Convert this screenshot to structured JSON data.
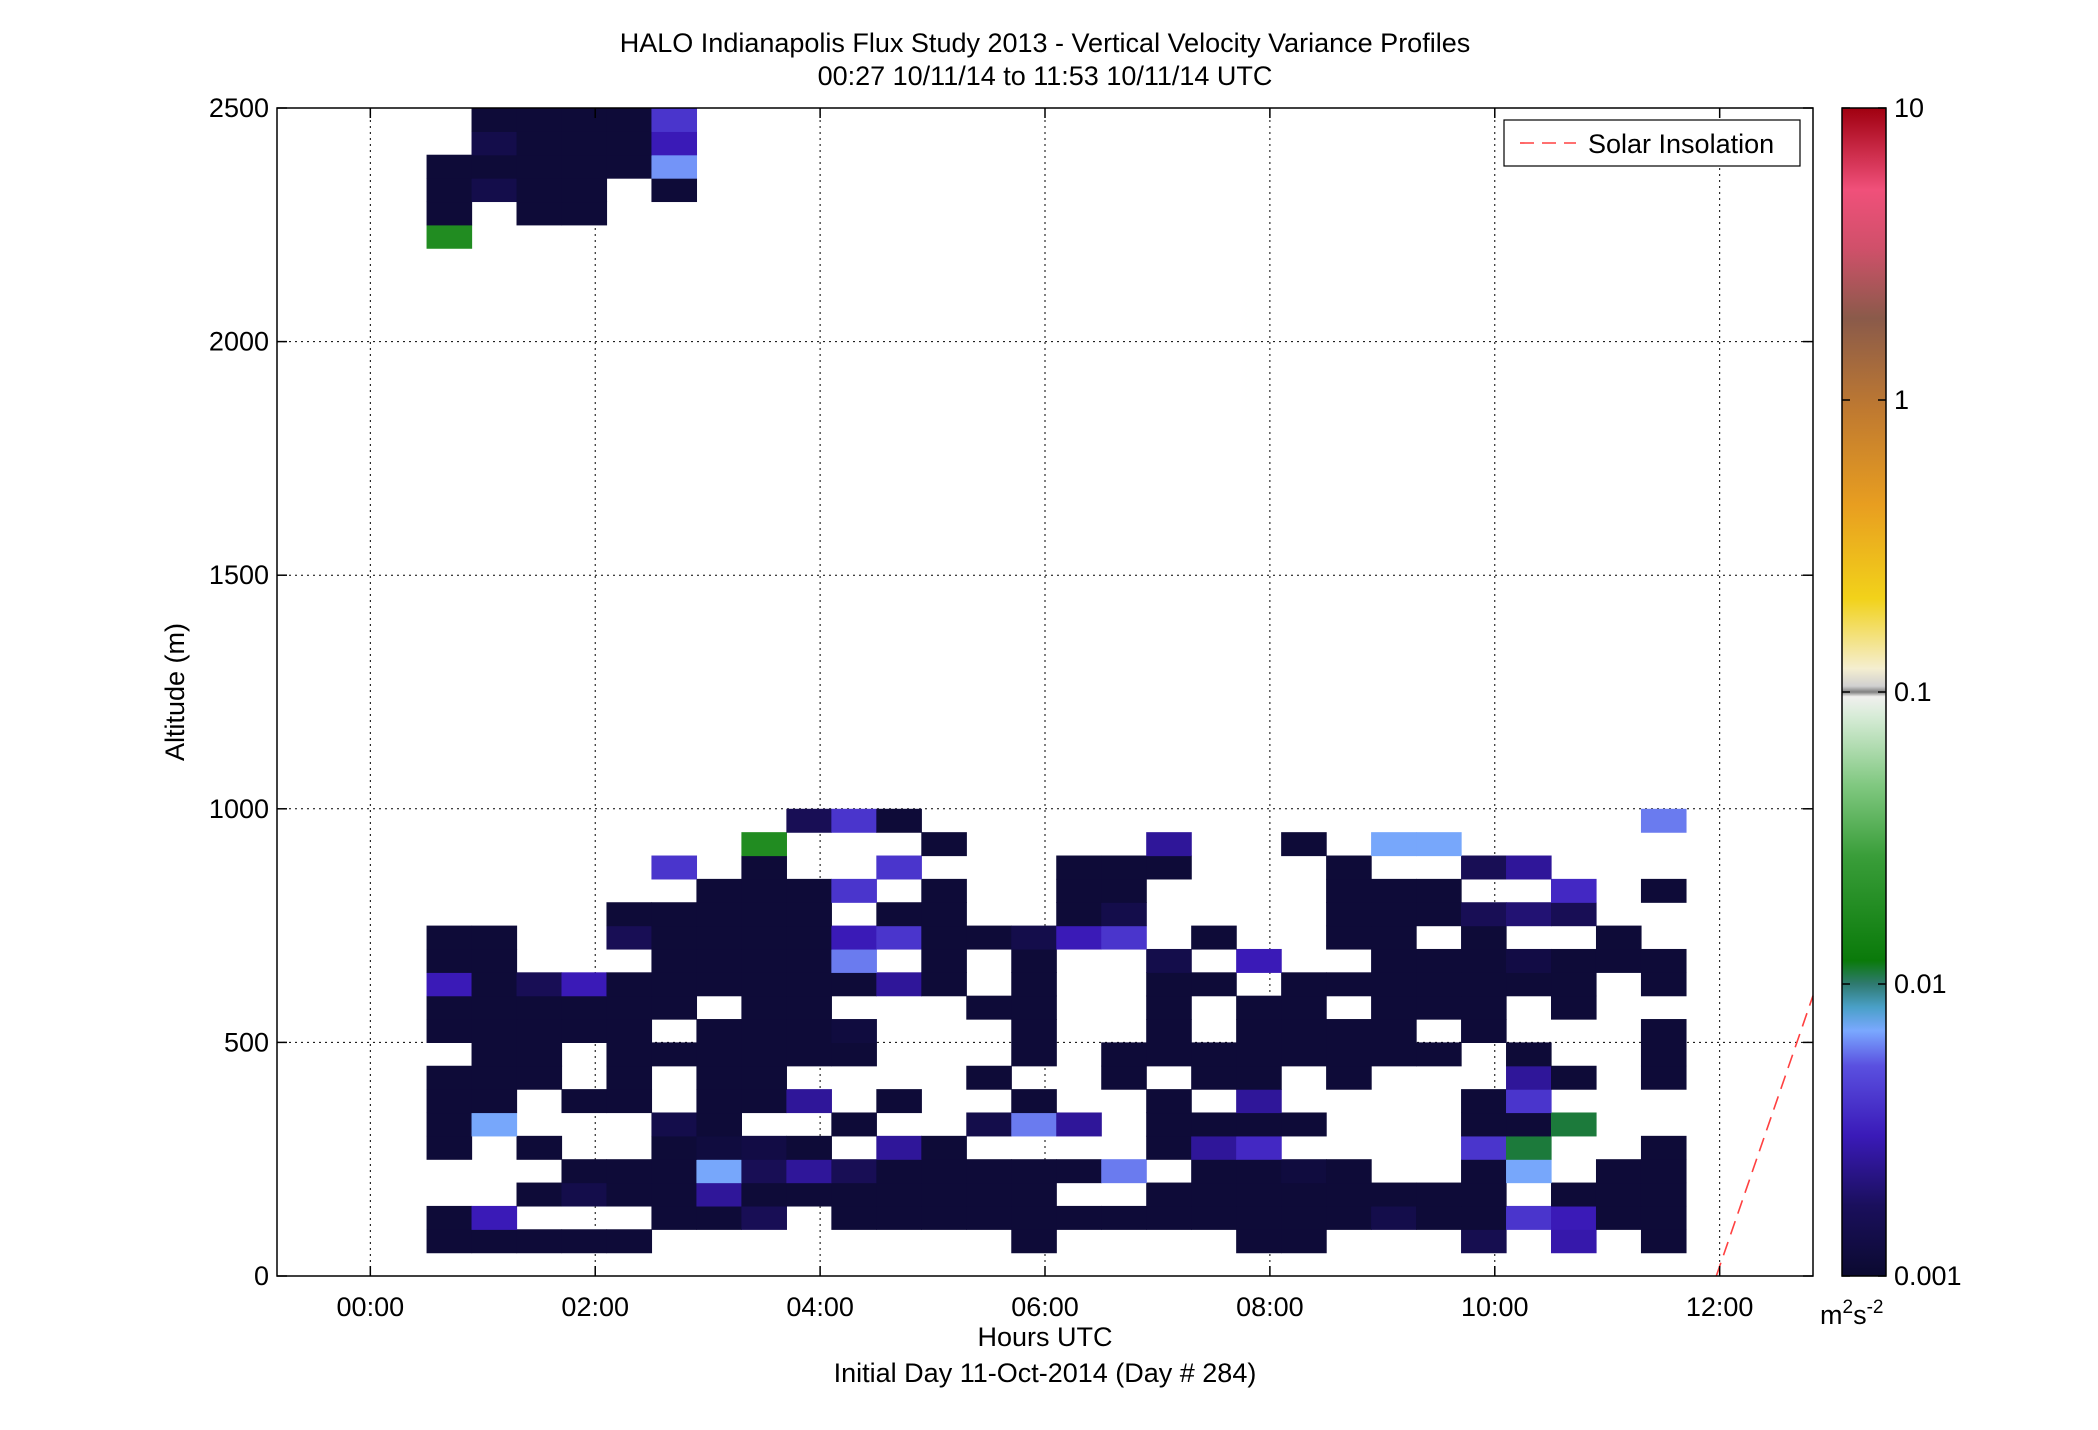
{
  "chart_data": {
    "type": "heatmap",
    "title": "HALO Indianapolis Flux Study 2013 - Vertical Velocity Variance Profiles",
    "subtitle": "00:27 10/11/14 to 11:53 10/11/14  UTC",
    "xlabel": "Hours UTC",
    "footer": "Initial Day 11-Oct-2014 (Day # 284)",
    "ylabel": "Altitude (m)",
    "x_units": "hours",
    "xlim": [
      -0.83,
      12.83
    ],
    "ylim": [
      0,
      2500
    ],
    "x_tick_values": [
      0,
      2,
      4,
      6,
      8,
      10,
      12
    ],
    "x_tick_labels": [
      "00:00",
      "02:00",
      "04:00",
      "06:00",
      "08:00",
      "10:00",
      "12:00"
    ],
    "y_tick_values": [
      0,
      500,
      1000,
      1500,
      2000,
      2500
    ],
    "y_tick_labels": [
      "0",
      "500",
      "1000",
      "1500",
      "2000",
      "2500"
    ],
    "grid": true,
    "legend": {
      "position": "top-right",
      "entries": [
        {
          "label": "Solar Insolation",
          "style": "dashed",
          "color": "#ff0000"
        }
      ]
    },
    "colorbar": {
      "scale": "log",
      "range": [
        0.001,
        10
      ],
      "tick_values": [
        0.001,
        0.01,
        0.1,
        1,
        10
      ],
      "tick_labels": [
        "0.001",
        "0.01",
        "0.1",
        "1",
        "10"
      ],
      "unit_label": "m",
      "unit_sup1": "2",
      "unit_mid": "s",
      "unit_sup2": "-2"
    },
    "solar_insolation_line": [
      [
        11.97,
        0
      ],
      [
        12.83,
        600
      ]
    ],
    "cell_width_hours": 0.4,
    "cell_height_m": 50,
    "x_centers": [
      0.7,
      1.1,
      1.5,
      1.9,
      2.3,
      2.7,
      3.1,
      3.5,
      3.9,
      4.3,
      4.7,
      5.1,
      5.5,
      5.9,
      6.3,
      6.7,
      7.1,
      7.5,
      7.9,
      8.3,
      8.7,
      9.1,
      9.5,
      9.9,
      10.3,
      10.7,
      11.1,
      11.5
    ],
    "y_centers": [
      75,
      125,
      175,
      225,
      275,
      325,
      375,
      425,
      475,
      525,
      575,
      625,
      675,
      725,
      775,
      825,
      875,
      925,
      975,
      2225,
      2275,
      2325,
      2375,
      2425,
      2475
    ],
    "values": [
      [
        0.0011,
        0.0011,
        0.0011,
        0.0011,
        0.0011,
        null,
        null,
        null,
        null,
        null,
        null,
        null,
        null,
        0.0011,
        null,
        null,
        null,
        null,
        0.0011,
        0.0011,
        null,
        null,
        null,
        0.0015,
        null,
        0.0028,
        null,
        0.0011
      ],
      [
        0.0011,
        0.003,
        null,
        null,
        null,
        0.0011,
        0.0011,
        0.0016,
        null,
        0.0011,
        0.0011,
        0.0011,
        0.0011,
        0.0011,
        0.0011,
        0.0011,
        0.0011,
        0.0011,
        0.0011,
        0.0011,
        0.0011,
        0.0014,
        0.0011,
        0.0011,
        0.004,
        0.003,
        0.0011,
        0.0011
      ],
      [
        null,
        null,
        0.0011,
        0.0014,
        0.0011,
        0.0011,
        0.0025,
        0.0011,
        0.0011,
        0.0011,
        0.0011,
        0.0011,
        0.0011,
        0.0011,
        null,
        null,
        0.0011,
        0.0011,
        0.0011,
        0.0011,
        0.0011,
        0.0011,
        0.0011,
        0.0011,
        null,
        0.0011,
        0.0011,
        0.0011
      ],
      [
        null,
        null,
        null,
        0.0011,
        0.0011,
        0.0011,
        0.007,
        0.0016,
        0.0025,
        0.0016,
        0.0011,
        0.0011,
        0.0011,
        0.0011,
        0.0011,
        0.006,
        null,
        0.0011,
        0.0011,
        0.0012,
        0.0011,
        null,
        null,
        0.0011,
        0.007,
        null,
        0.0011,
        0.0011
      ],
      [
        0.0011,
        null,
        0.0011,
        null,
        null,
        0.0011,
        0.0012,
        0.0013,
        0.0011,
        null,
        0.0025,
        0.0011,
        null,
        null,
        null,
        null,
        0.0011,
        0.0025,
        0.0035,
        null,
        null,
        null,
        null,
        0.004,
        0.011,
        null,
        null,
        0.0011
      ],
      [
        0.0011,
        0.007,
        null,
        null,
        null,
        0.0014,
        0.0011,
        null,
        null,
        0.0011,
        null,
        null,
        0.0014,
        0.006,
        0.0025,
        null,
        0.0011,
        0.0011,
        0.0011,
        0.0011,
        null,
        null,
        null,
        0.0011,
        0.0011,
        0.011,
        null,
        null
      ],
      [
        0.0011,
        0.0011,
        null,
        0.0011,
        0.0011,
        null,
        0.0011,
        0.0011,
        0.0025,
        null,
        0.0011,
        null,
        null,
        0.0011,
        null,
        null,
        0.0011,
        null,
        0.0025,
        null,
        null,
        null,
        null,
        0.0011,
        0.004,
        null,
        null,
        null
      ],
      [
        0.0011,
        0.0011,
        0.0011,
        null,
        0.0011,
        null,
        0.0011,
        0.0011,
        null,
        null,
        null,
        null,
        0.0011,
        null,
        null,
        0.0011,
        null,
        0.0011,
        0.0011,
        null,
        0.0011,
        null,
        null,
        null,
        0.0025,
        0.0011,
        null,
        0.0011
      ],
      [
        null,
        0.0011,
        0.0011,
        null,
        0.0011,
        0.0011,
        0.0011,
        0.0011,
        0.0011,
        0.0011,
        null,
        null,
        null,
        0.0011,
        null,
        0.0011,
        0.0011,
        0.0011,
        0.0011,
        0.0011,
        0.0011,
        0.0011,
        0.0011,
        null,
        0.0011,
        null,
        null,
        0.0011
      ],
      [
        0.0011,
        0.0011,
        0.0011,
        0.0011,
        0.0011,
        null,
        0.0011,
        0.0011,
        0.0011,
        0.0012,
        null,
        null,
        null,
        0.0011,
        null,
        null,
        0.0011,
        null,
        0.0011,
        0.0011,
        0.0011,
        0.0011,
        null,
        0.0011,
        null,
        null,
        null,
        0.0011
      ],
      [
        0.0011,
        0.0011,
        0.0011,
        0.0011,
        0.0011,
        0.0011,
        null,
        0.0011,
        0.0011,
        null,
        null,
        null,
        0.0011,
        0.0011,
        null,
        null,
        0.0011,
        null,
        0.0011,
        0.0011,
        null,
        0.0011,
        0.0011,
        0.0011,
        null,
        0.0011,
        null,
        null
      ],
      [
        0.003,
        0.0011,
        0.0016,
        0.003,
        0.0011,
        0.0011,
        0.0011,
        0.0011,
        0.0011,
        0.0011,
        0.0025,
        0.0011,
        null,
        0.0011,
        null,
        null,
        0.0011,
        0.0011,
        null,
        0.0011,
        0.0011,
        0.0011,
        0.0011,
        0.0011,
        0.0011,
        0.0011,
        null,
        0.0011
      ],
      [
        0.0011,
        0.0011,
        null,
        null,
        null,
        0.0011,
        0.0011,
        0.0011,
        0.0011,
        0.006,
        null,
        0.0011,
        null,
        0.0011,
        null,
        null,
        0.0014,
        null,
        0.003,
        null,
        null,
        0.0011,
        0.0011,
        0.0011,
        0.0013,
        0.0011,
        0.0011,
        0.0011
      ],
      [
        0.0011,
        0.0011,
        null,
        null,
        0.0016,
        0.0011,
        0.0011,
        0.0011,
        0.0011,
        0.003,
        0.004,
        0.0011,
        0.0011,
        0.0014,
        0.003,
        0.004,
        null,
        0.0011,
        null,
        null,
        0.0011,
        0.0011,
        null,
        0.0011,
        null,
        null,
        0.0011,
        null
      ],
      [
        null,
        null,
        null,
        null,
        0.0011,
        0.0011,
        0.0011,
        0.0011,
        0.0011,
        null,
        0.0011,
        0.0011,
        null,
        null,
        0.0011,
        0.0014,
        null,
        null,
        null,
        null,
        0.0011,
        0.0011,
        0.0011,
        0.0016,
        0.002,
        0.0016,
        null,
        null
      ],
      [
        null,
        null,
        null,
        null,
        null,
        null,
        0.0011,
        0.0011,
        0.0011,
        0.004,
        null,
        0.0011,
        null,
        null,
        0.0011,
        0.0011,
        null,
        null,
        null,
        null,
        0.0011,
        0.0011,
        0.0011,
        null,
        null,
        0.0035,
        null,
        0.0011
      ],
      [
        null,
        null,
        null,
        null,
        null,
        0.004,
        null,
        0.0011,
        null,
        null,
        0.004,
        null,
        null,
        null,
        0.0011,
        0.0011,
        0.0011,
        null,
        null,
        null,
        0.0011,
        null,
        null,
        0.0016,
        0.0025,
        null,
        null,
        null
      ],
      [
        null,
        null,
        null,
        null,
        null,
        null,
        null,
        0.018,
        null,
        null,
        null,
        0.0011,
        null,
        null,
        null,
        null,
        0.0025,
        null,
        null,
        0.0011,
        null,
        0.007,
        0.007,
        null,
        null,
        null,
        null,
        null
      ],
      [
        null,
        null,
        null,
        null,
        null,
        null,
        null,
        null,
        0.0016,
        0.004,
        0.0011,
        null,
        null,
        null,
        null,
        null,
        null,
        null,
        null,
        null,
        null,
        null,
        null,
        null,
        null,
        null,
        null,
        0.006
      ]
    ],
    "upper_values": [
      [
        0.018,
        null,
        null,
        null,
        null,
        null,
        null,
        null,
        null,
        null,
        null,
        null,
        null,
        null,
        null,
        null,
        null,
        null,
        null,
        null,
        null,
        null,
        null,
        null,
        null,
        null,
        null,
        null
      ],
      [
        0.0011,
        null,
        0.0011,
        0.0011,
        null,
        null,
        null,
        null,
        null,
        null,
        null,
        null,
        null,
        null,
        null,
        null,
        null,
        null,
        null,
        null,
        null,
        null,
        null,
        null,
        null,
        null,
        null,
        null
      ],
      [
        0.0011,
        0.0014,
        0.0011,
        0.0011,
        null,
        0.0011,
        null,
        null,
        null,
        null,
        null,
        null,
        null,
        null,
        null,
        null,
        null,
        null,
        null,
        null,
        null,
        null,
        null,
        null,
        null,
        null,
        null,
        null
      ],
      [
        0.0011,
        0.0011,
        0.0011,
        0.0011,
        0.0011,
        0.0065,
        null,
        null,
        null,
        null,
        null,
        null,
        null,
        null,
        null,
        null,
        null,
        null,
        null,
        null,
        null,
        null,
        null,
        null,
        null,
        null,
        null,
        null
      ],
      [
        null,
        0.0014,
        0.0011,
        0.0011,
        0.0011,
        0.003,
        null,
        null,
        null,
        null,
        null,
        null,
        null,
        null,
        null,
        null,
        null,
        null,
        null,
        null,
        null,
        null,
        null,
        null,
        null,
        null,
        null,
        null
      ],
      [
        null,
        0.0011,
        0.0011,
        0.0011,
        0.0011,
        0.004,
        null,
        null,
        null,
        null,
        null,
        null,
        null,
        null,
        null,
        null,
        null,
        null,
        null,
        null,
        null,
        null,
        null,
        null,
        null,
        null,
        null,
        null
      ]
    ]
  }
}
